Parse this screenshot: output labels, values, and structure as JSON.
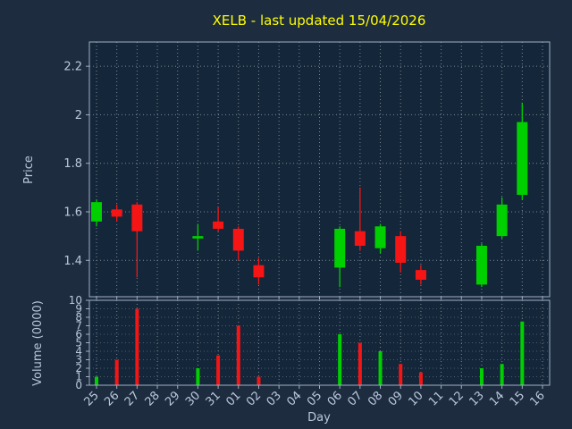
{
  "colors": {
    "figure_bg": "#1d2c3e",
    "plot_bg": "#142639",
    "grid": "#ffffff",
    "spine": "#9fb0c6",
    "tick_label": "#bac8de",
    "axis_label": "#bac8de",
    "title": "#ffff00",
    "up": "#00cf00",
    "down": "#f51515"
  },
  "chart_data": [
    {
      "type": "candlestick",
      "title": "XELB - last updated 15/04/2026",
      "xlabel": "Day",
      "ylabel": "Price",
      "ylim": [
        1.25,
        2.3
      ],
      "ytick_values": [
        1.4,
        1.6,
        1.8,
        2.0,
        2.2
      ],
      "ytick_labels": [
        "1.4",
        "1.6",
        "1.8",
        "2",
        "2.2"
      ],
      "grid": "dotted",
      "categories": [
        "25",
        "26",
        "27",
        "28",
        "29",
        "30",
        "31",
        "01",
        "02",
        "03",
        "04",
        "05",
        "06",
        "07",
        "08",
        "09",
        "10",
        "11",
        "12",
        "13",
        "14",
        "15",
        "16"
      ],
      "series": [
        {
          "day": "25",
          "open": 1.56,
          "high": 1.65,
          "low": 1.54,
          "close": 1.64
        },
        {
          "day": "26",
          "open": 1.61,
          "high": 1.63,
          "low": 1.56,
          "close": 1.58
        },
        {
          "day": "27",
          "open": 1.63,
          "high": 1.64,
          "low": 1.33,
          "close": 1.52
        },
        {
          "day": "30",
          "open": 1.49,
          "high": 1.55,
          "low": 1.44,
          "close": 1.5
        },
        {
          "day": "31",
          "open": 1.56,
          "high": 1.62,
          "low": 1.52,
          "close": 1.53
        },
        {
          "day": "01",
          "open": 1.53,
          "high": 1.54,
          "low": 1.4,
          "close": 1.44
        },
        {
          "day": "02",
          "open": 1.38,
          "high": 1.41,
          "low": 1.3,
          "close": 1.33
        },
        {
          "day": "06",
          "open": 1.37,
          "high": 1.54,
          "low": 1.29,
          "close": 1.53
        },
        {
          "day": "07",
          "open": 1.52,
          "high": 1.7,
          "low": 1.44,
          "close": 1.46
        },
        {
          "day": "08",
          "open": 1.45,
          "high": 1.55,
          "low": 1.43,
          "close": 1.54
        },
        {
          "day": "09",
          "open": 1.5,
          "high": 1.52,
          "low": 1.35,
          "close": 1.39
        },
        {
          "day": "10",
          "open": 1.36,
          "high": 1.38,
          "low": 1.3,
          "close": 1.32
        },
        {
          "day": "13",
          "open": 1.3,
          "high": 1.47,
          "low": 1.29,
          "close": 1.46
        },
        {
          "day": "14",
          "open": 1.5,
          "high": 1.66,
          "low": 1.49,
          "close": 1.63
        },
        {
          "day": "15",
          "open": 1.67,
          "high": 2.05,
          "low": 1.65,
          "close": 1.97
        }
      ]
    },
    {
      "type": "bar",
      "ylabel": "Volume (0000)",
      "ylim": [
        0,
        10
      ],
      "ytick_values": [
        0,
        1,
        2,
        3,
        4,
        5,
        6,
        7,
        8,
        9,
        10
      ],
      "ytick_labels": [
        "0",
        "1",
        "2",
        "3",
        "4",
        "5",
        "6",
        "7",
        "8",
        "9",
        "10"
      ],
      "values": [
        {
          "day": "25",
          "volume": 1.0,
          "direction": "up"
        },
        {
          "day": "26",
          "volume": 3.0,
          "direction": "down"
        },
        {
          "day": "27",
          "volume": 9.0,
          "direction": "down"
        },
        {
          "day": "30",
          "volume": 2.0,
          "direction": "up"
        },
        {
          "day": "31",
          "volume": 3.5,
          "direction": "down"
        },
        {
          "day": "01",
          "volume": 7.0,
          "direction": "down"
        },
        {
          "day": "02",
          "volume": 1.0,
          "direction": "down"
        },
        {
          "day": "06",
          "volume": 6.0,
          "direction": "up"
        },
        {
          "day": "07",
          "volume": 5.0,
          "direction": "down"
        },
        {
          "day": "08",
          "volume": 4.0,
          "direction": "up"
        },
        {
          "day": "09",
          "volume": 2.5,
          "direction": "down"
        },
        {
          "day": "10",
          "volume": 1.5,
          "direction": "down"
        },
        {
          "day": "13",
          "volume": 2.0,
          "direction": "up"
        },
        {
          "day": "14",
          "volume": 2.5,
          "direction": "up"
        },
        {
          "day": "15",
          "volume": 7.5,
          "direction": "up"
        }
      ]
    }
  ]
}
